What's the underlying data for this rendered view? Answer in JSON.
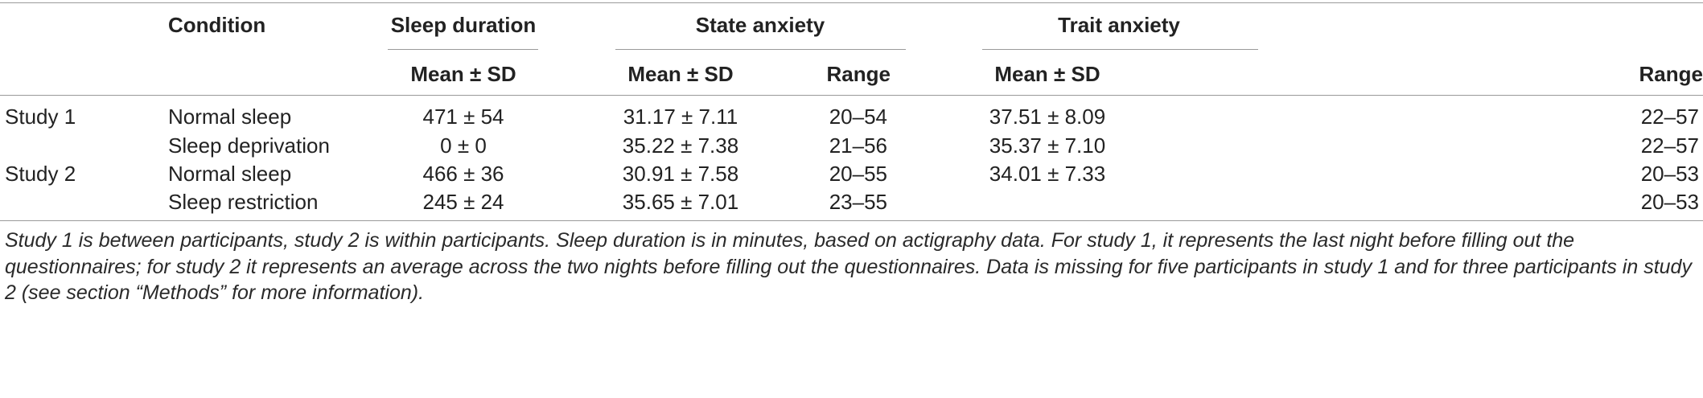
{
  "table": {
    "headers": {
      "condition": "Condition",
      "sleep_duration": "Sleep duration",
      "state_anxiety": "State anxiety",
      "trait_anxiety": "Trait anxiety",
      "mean_sd": "Mean ± SD",
      "range": "Range"
    },
    "rows": [
      {
        "study": "Study 1",
        "condition": "Normal sleep",
        "sleep": "471 ± 54",
        "state_mean": "31.17 ± 7.11",
        "state_range": "20–54",
        "trait_mean": "37.51 ± 8.09",
        "trait_range": "22–57"
      },
      {
        "study": "",
        "condition": "Sleep deprivation",
        "sleep": "0 ± 0",
        "state_mean": "35.22 ± 7.38",
        "state_range": "21–56",
        "trait_mean": "35.37 ± 7.10",
        "trait_range": "22–57"
      },
      {
        "study": "Study 2",
        "condition": "Normal sleep",
        "sleep": "466 ± 36",
        "state_mean": "30.91 ± 7.58",
        "state_range": "20–55",
        "trait_mean": "34.01 ± 7.33",
        "trait_range": "20–53"
      },
      {
        "study": "",
        "condition": "Sleep restriction",
        "sleep": "245 ± 24",
        "state_mean": "35.65 ± 7.01",
        "state_range": "23–55",
        "trait_mean": "",
        "trait_range": "20–53"
      }
    ],
    "footnote": "Study 1 is between participants, study 2 is within participants. Sleep duration is in minutes, based on actigraphy data. For study 1, it represents the last night before filling out the questionnaires; for study 2 it represents an average across the two nights before filling out the questionnaires. Data is missing for five participants in study 1 and for three participants in study 2 (see section “Methods” for more information)."
  }
}
